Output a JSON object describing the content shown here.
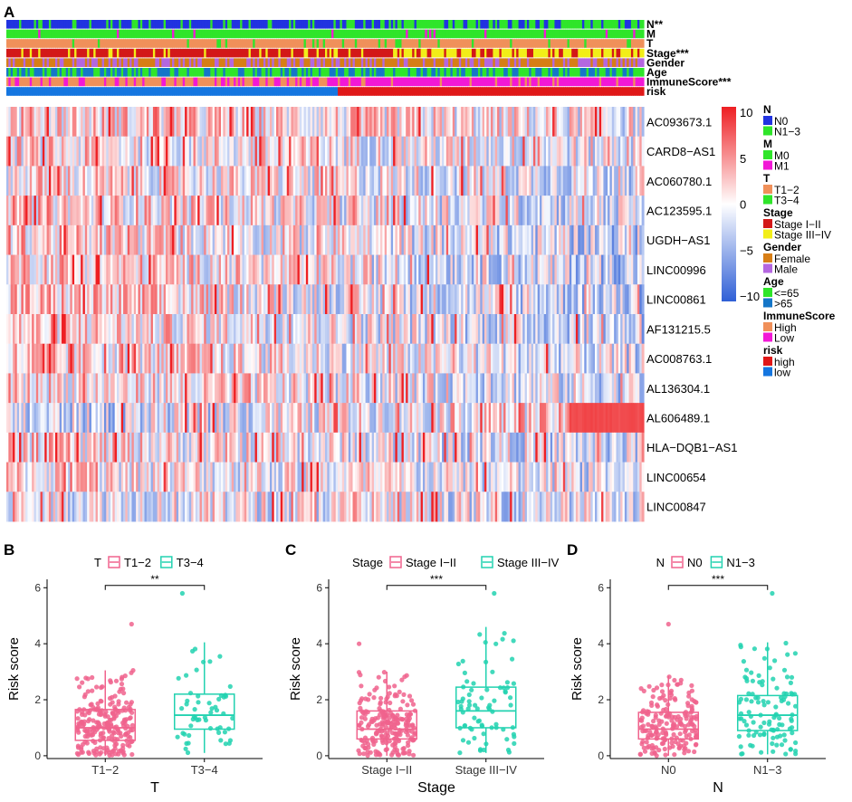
{
  "panel_labels": {
    "A": "A",
    "B": "B",
    "C": "C",
    "D": "D"
  },
  "colors": {
    "heat_low": "#2f5fd6",
    "heat_mid": "#ffffff",
    "heat_high": "#ee1f23",
    "box_pink": "#f0638d",
    "box_teal": "#22d2b0"
  },
  "chart_data": [
    {
      "type": "heatmap",
      "annotation_tracks": [
        {
          "label": "N**",
          "colors": [
            "#2133e0",
            "#2fe52a"
          ],
          "high_fraction": 0.36
        },
        {
          "label": "M",
          "colors": [
            "#2fe52a",
            "#f218d6"
          ],
          "high_fraction": 0.03
        },
        {
          "label": "T",
          "colors": [
            "#f0905a",
            "#2fe52a"
          ],
          "high_fraction": 0.07
        },
        {
          "label": "Stage***",
          "colors": [
            "#d31818",
            "#f2ee18"
          ],
          "high_fraction": 0.3
        },
        {
          "label": "Gender",
          "colors": [
            "#d77e16",
            "#b467e0"
          ],
          "high_fraction": 0.4
        },
        {
          "label": "Age",
          "colors": [
            "#2fe52a",
            "#1576c8"
          ],
          "high_fraction": 0.4
        },
        {
          "label": "ImmuneScore***",
          "colors": [
            "#f0905a",
            "#f218d6"
          ],
          "high_fraction": 0.5
        },
        {
          "label": "risk",
          "colors": [
            "#1576e0",
            "#e01818"
          ],
          "high_fraction": 0.0
        }
      ],
      "genes": [
        {
          "name": "AC093673.1",
          "bias": 0.35,
          "trend": 0.25
        },
        {
          "name": "CARD8−AS1",
          "bias": 0.1,
          "trend": 0.2
        },
        {
          "name": "AC060780.1",
          "bias": 0.0,
          "trend": 0.3
        },
        {
          "name": "AC123595.1",
          "bias": 0.05,
          "trend": 0.45
        },
        {
          "name": "UGDH−AS1",
          "bias": -0.1,
          "trend": 0.55
        },
        {
          "name": "LINC00996",
          "bias": 0.0,
          "trend": 0.6
        },
        {
          "name": "LINC00861",
          "bias": -0.05,
          "trend": 0.6
        },
        {
          "name": "AF131215.5",
          "bias": -0.05,
          "trend": 0.5
        },
        {
          "name": "AC008763.1",
          "bias": 0.0,
          "trend": 0.4
        },
        {
          "name": "AL136304.1",
          "bias": -0.05,
          "trend": 0.35
        },
        {
          "name": "AL606489.1",
          "bias": -0.1,
          "trend": -0.55
        },
        {
          "name": "HLA−DQB1−AS1",
          "bias": -0.1,
          "trend": 0.4
        },
        {
          "name": "LINC00654",
          "bias": -0.15,
          "trend": 0.35
        },
        {
          "name": "LINC00847",
          "bias": -0.2,
          "trend": 0.1
        }
      ],
      "samples": 300,
      "colorbar": {
        "ticks": [
          "10",
          "5",
          "0",
          "−5",
          "−10"
        ],
        "range": [
          -10,
          10
        ]
      },
      "legend": [
        {
          "title": "N",
          "items": [
            {
              "label": "N0",
              "color": "#2133e0"
            },
            {
              "label": "N1−3",
              "color": "#2fe52a"
            }
          ]
        },
        {
          "title": "M",
          "items": [
            {
              "label": "M0",
              "color": "#2fe52a"
            },
            {
              "label": "M1",
              "color": "#f218d6"
            }
          ]
        },
        {
          "title": "T",
          "items": [
            {
              "label": "T1−2",
              "color": "#f0905a"
            },
            {
              "label": "T3−4",
              "color": "#2fe52a"
            }
          ]
        },
        {
          "title": "Stage",
          "items": [
            {
              "label": "Stage I−II",
              "color": "#d31818"
            },
            {
              "label": "Stage III−IV",
              "color": "#f2ee18"
            }
          ]
        },
        {
          "title": "Gender",
          "items": [
            {
              "label": "Female",
              "color": "#d77e16"
            },
            {
              "label": "Male",
              "color": "#b467e0"
            }
          ]
        },
        {
          "title": "Age",
          "items": [
            {
              "label": "<=65",
              "color": "#2fe52a"
            },
            {
              "label": ">65",
              "color": "#1576c8"
            }
          ]
        },
        {
          "title": "ImmuneScore",
          "items": [
            {
              "label": "High",
              "color": "#f0905a"
            },
            {
              "label": "Low",
              "color": "#f218d6"
            }
          ]
        },
        {
          "title": "risk",
          "items": [
            {
              "label": "high",
              "color": "#e01818"
            },
            {
              "label": "low",
              "color": "#1576e0"
            }
          ]
        }
      ]
    },
    {
      "type": "box",
      "legend_title": "T",
      "categories": [
        "T1−2",
        "T3−4"
      ],
      "xlabel": "T",
      "ylabel": "Risk score",
      "ylim": [
        -0.1,
        6.3
      ],
      "yticks": [
        "0",
        "2",
        "4",
        "6"
      ],
      "significance": "**",
      "boxes": [
        {
          "q1": 0.55,
          "median": 1.0,
          "q3": 1.65,
          "whisker_low": 0.0,
          "whisker_high": 3.05,
          "n": 230,
          "max_outlier": 4.7
        },
        {
          "q1": 0.95,
          "median": 1.45,
          "q3": 2.2,
          "whisker_low": 0.1,
          "whisker_high": 4.05,
          "n": 55,
          "max_outlier": 5.8
        }
      ]
    },
    {
      "type": "box",
      "legend_title": "Stage",
      "categories": [
        "Stage I−II",
        "Stage III−IV"
      ],
      "xlabel": "Stage",
      "ylabel": "Risk score",
      "ylim": [
        -0.1,
        6.3
      ],
      "yticks": [
        "0",
        "2",
        "4",
        "6"
      ],
      "significance": "***",
      "boxes": [
        {
          "q1": 0.6,
          "median": 0.95,
          "q3": 1.6,
          "whisker_low": 0.0,
          "whisker_high": 3.0,
          "n": 220,
          "max_outlier": 4.0
        },
        {
          "q1": 1.0,
          "median": 1.6,
          "q3": 2.45,
          "whisker_low": 0.1,
          "whisker_high": 4.6,
          "n": 75,
          "max_outlier": 5.8
        }
      ]
    },
    {
      "type": "box",
      "legend_title": "N",
      "categories": [
        "N0",
        "N1−3"
      ],
      "xlabel": "N",
      "ylabel": "Risk score",
      "ylim": [
        -0.1,
        6.3
      ],
      "yticks": [
        "0",
        "2",
        "4",
        "6"
      ],
      "significance": "***",
      "boxes": [
        {
          "q1": 0.6,
          "median": 0.95,
          "q3": 1.55,
          "whisker_low": 0.0,
          "whisker_high": 2.85,
          "n": 190,
          "max_outlier": 4.7
        },
        {
          "q1": 0.9,
          "median": 1.45,
          "q3": 2.15,
          "whisker_low": 0.05,
          "whisker_high": 4.05,
          "n": 110,
          "max_outlier": 5.8
        }
      ]
    }
  ]
}
